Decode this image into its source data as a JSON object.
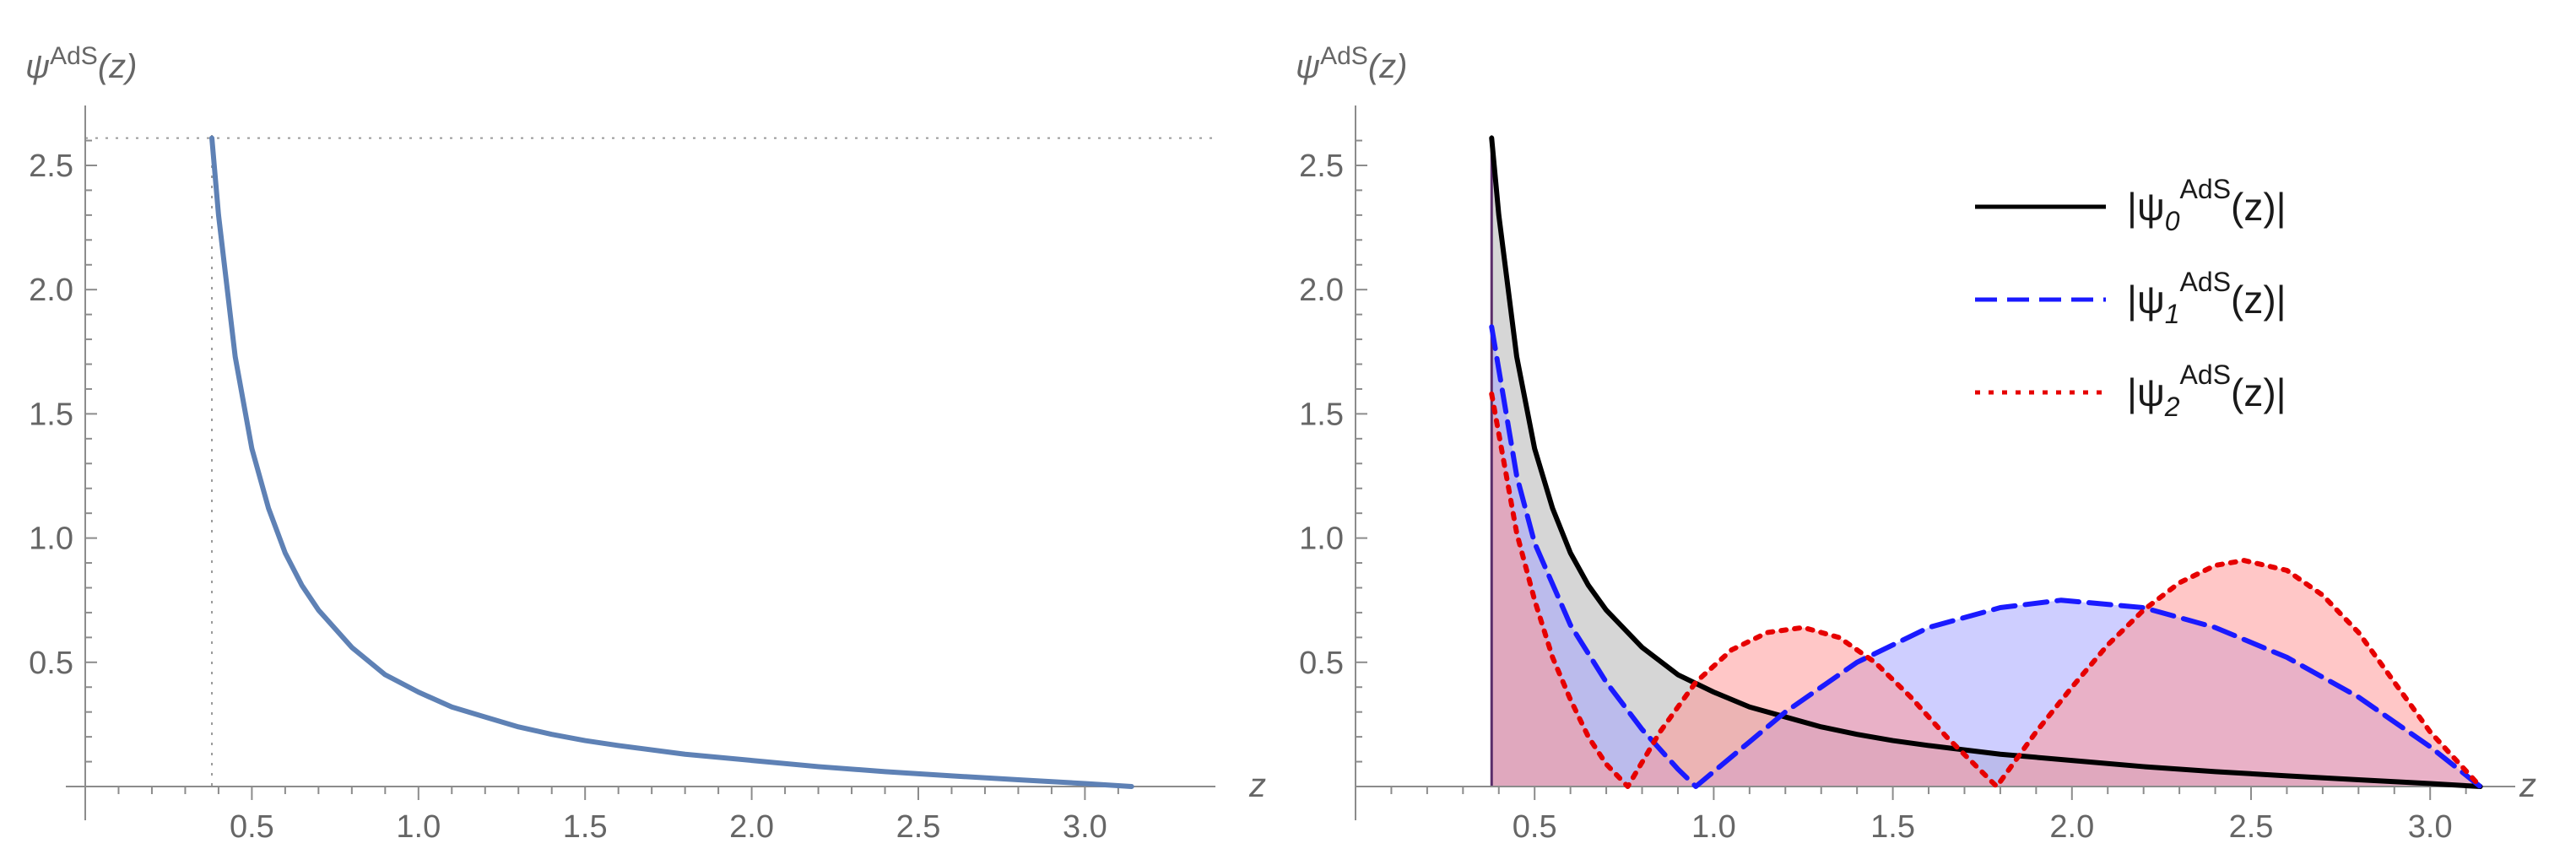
{
  "chart_data": [
    {
      "type": "line",
      "title": "",
      "ylabel": "ψ^AdS(z)",
      "ylabel_parts": {
        "base": "ψ",
        "sup": "AdS",
        "arg": "(z)"
      },
      "xlabel": "z",
      "xlim": [
        0.0,
        3.2
      ],
      "ylim": [
        0.0,
        2.7
      ],
      "x_ticks": [
        "0.5",
        "1.0",
        "1.5",
        "2.0",
        "2.5",
        "3.0"
      ],
      "y_ticks": [
        "0.5",
        "1.0",
        "1.5",
        "2.0",
        "2.5"
      ],
      "grid": false,
      "reference_lines": [
        {
          "orientation": "vertical",
          "x": 0.38,
          "style": "dotted"
        },
        {
          "orientation": "horizontal",
          "y": 2.61,
          "style": "dotted"
        }
      ],
      "series": [
        {
          "color": "#5e81b5",
          "style": "solid",
          "x": [
            0.38,
            0.4,
            0.45,
            0.5,
            0.55,
            0.6,
            0.65,
            0.7,
            0.8,
            0.9,
            1.0,
            1.1,
            1.2,
            1.3,
            1.4,
            1.5,
            1.6,
            1.8,
            2.0,
            2.2,
            2.4,
            2.6,
            2.8,
            3.0,
            3.14
          ],
          "y": [
            2.61,
            2.3,
            1.73,
            1.36,
            1.12,
            0.94,
            0.81,
            0.71,
            0.56,
            0.45,
            0.38,
            0.32,
            0.28,
            0.24,
            0.21,
            0.185,
            0.165,
            0.13,
            0.105,
            0.08,
            0.06,
            0.043,
            0.027,
            0.012,
            0.0
          ]
        }
      ]
    },
    {
      "type": "area",
      "title": "",
      "ylabel": "ψ^AdS(z)",
      "ylabel_parts": {
        "base": "ψ",
        "sup": "AdS",
        "arg": "(z)"
      },
      "xlabel": "z",
      "xlim": [
        0.0,
        3.2
      ],
      "ylim": [
        0.0,
        2.7
      ],
      "x_ticks": [
        "0.5",
        "1.0",
        "1.5",
        "2.0",
        "2.5",
        "3.0"
      ],
      "y_ticks": [
        "0.5",
        "1.0",
        "1.5",
        "2.0",
        "2.5"
      ],
      "grid": false,
      "reference_lines": [
        {
          "orientation": "vertical",
          "x": 0.38,
          "style": "dotted"
        }
      ],
      "legend_position": "top-right",
      "legend": [
        {
          "prefix": "|ψ",
          "sub": "0",
          "sup": "AdS",
          "suffix": "(z)|"
        },
        {
          "prefix": "|ψ",
          "sub": "1",
          "sup": "AdS",
          "suffix": "(z)|"
        },
        {
          "prefix": "|ψ",
          "sub": "2",
          "sup": "AdS",
          "suffix": "(z)|"
        }
      ],
      "series": [
        {
          "color": "#000000",
          "fill": "#b4b4b4",
          "style": "solid",
          "x": [
            0.38,
            0.4,
            0.45,
            0.5,
            0.55,
            0.6,
            0.65,
            0.7,
            0.8,
            0.9,
            1.0,
            1.1,
            1.2,
            1.3,
            1.4,
            1.5,
            1.6,
            1.8,
            2.0,
            2.2,
            2.4,
            2.6,
            2.8,
            3.0,
            3.14
          ],
          "y": [
            2.61,
            2.3,
            1.73,
            1.36,
            1.12,
            0.94,
            0.81,
            0.71,
            0.56,
            0.45,
            0.38,
            0.32,
            0.28,
            0.24,
            0.21,
            0.185,
            0.165,
            0.13,
            0.105,
            0.08,
            0.06,
            0.043,
            0.027,
            0.012,
            0.0
          ]
        },
        {
          "color": "#1a1aff",
          "fill": "#a6a6ff",
          "style": "dashed",
          "x": [
            0.38,
            0.45,
            0.5,
            0.6,
            0.7,
            0.8,
            0.9,
            0.95,
            1.0,
            1.1,
            1.2,
            1.4,
            1.6,
            1.8,
            1.97,
            2.2,
            2.4,
            2.6,
            2.8,
            3.0,
            3.14
          ],
          "y": [
            1.85,
            1.25,
            0.98,
            0.65,
            0.42,
            0.23,
            0.07,
            0.0,
            0.06,
            0.18,
            0.3,
            0.5,
            0.64,
            0.72,
            0.75,
            0.72,
            0.64,
            0.52,
            0.36,
            0.16,
            0.0
          ]
        },
        {
          "color": "#e60000",
          "fill": "#ff9999",
          "style": "dotted",
          "x": [
            0.38,
            0.45,
            0.5,
            0.55,
            0.6,
            0.65,
            0.7,
            0.76,
            0.85,
            0.95,
            1.05,
            1.15,
            1.25,
            1.35,
            1.45,
            1.55,
            1.65,
            1.79,
            1.9,
            2.0,
            2.1,
            2.2,
            2.3,
            2.4,
            2.48,
            2.6,
            2.7,
            2.8,
            2.9,
            3.0,
            3.14
          ],
          "y": [
            1.58,
            1.02,
            0.75,
            0.52,
            0.35,
            0.2,
            0.09,
            0.0,
            0.22,
            0.42,
            0.55,
            0.62,
            0.64,
            0.6,
            0.5,
            0.36,
            0.2,
            0.0,
            0.22,
            0.4,
            0.57,
            0.71,
            0.82,
            0.89,
            0.91,
            0.87,
            0.77,
            0.62,
            0.42,
            0.22,
            0.0
          ]
        }
      ]
    }
  ]
}
